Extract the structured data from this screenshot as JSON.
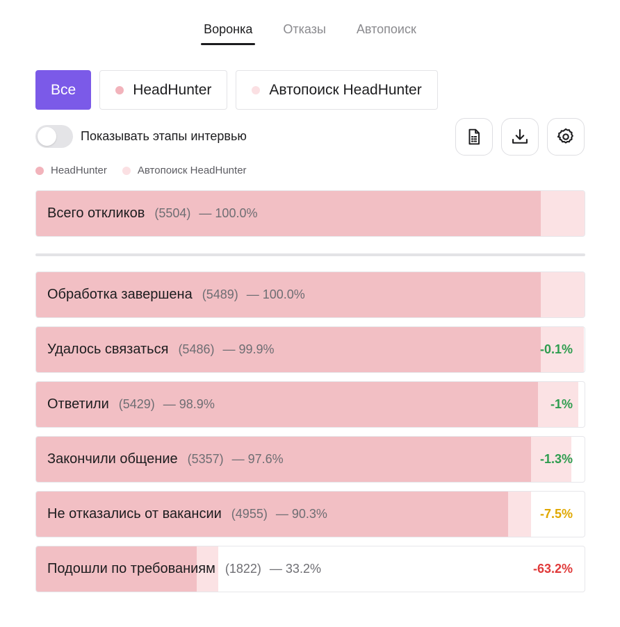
{
  "tabs": [
    {
      "label": "Воронка",
      "active": true
    },
    {
      "label": "Отказы",
      "active": false
    },
    {
      "label": "Автопоиск",
      "active": false
    }
  ],
  "filters": [
    {
      "label": "Все",
      "active": true
    },
    {
      "label": "HeadHunter",
      "dot_color": "#f2b3bb"
    },
    {
      "label": "Автопоиск HeadHunter",
      "dot_color": "#fbe0e3"
    }
  ],
  "toggle": {
    "label": "Показывать этапы интервью",
    "on": false
  },
  "actions": [
    {
      "icon": "spreadsheet-icon"
    },
    {
      "icon": "download-icon"
    },
    {
      "icon": "gear-icon"
    }
  ],
  "legend": [
    {
      "label": "HeadHunter",
      "color": "#f2b3bb"
    },
    {
      "label": "Автопоиск HeadHunter",
      "color": "#fbe0e3"
    }
  ],
  "colors": {
    "accent": "#7b5ae8",
    "bar_main": "#f2bfc4",
    "bar_light": "#fbe2e4",
    "delta_green": "#2e9d4f",
    "delta_yellow": "#e0a800",
    "delta_red": "#e03a3a"
  },
  "total": {
    "label": "Всего откликов",
    "count": "(5504)",
    "pct": "— 100.0%",
    "main_fraction": 0.92,
    "light_fraction": 1.0
  },
  "stages": [
    {
      "label": "Обработка завершена",
      "count": "(5489)",
      "pct": "— 100.0%",
      "delta": "",
      "delta_color": "",
      "main_fraction": 0.92,
      "light_fraction": 1.0
    },
    {
      "label": "Удалось связаться",
      "count": "(5486)",
      "pct": "— 99.9%",
      "delta": "-0.1%",
      "delta_color": "#2e9d4f",
      "main_fraction": 0.92,
      "light_fraction": 0.999
    },
    {
      "label": "Ответили",
      "count": "(5429)",
      "pct": "— 98.9%",
      "delta": "-1%",
      "delta_color": "#2e9d4f",
      "main_fraction": 0.915,
      "light_fraction": 0.989
    },
    {
      "label": "Закончили общение",
      "count": "(5357)",
      "pct": "— 97.6%",
      "delta": "-1.3%",
      "delta_color": "#2e9d4f",
      "main_fraction": 0.902,
      "light_fraction": 0.976
    },
    {
      "label": "Не отказались от вакансии",
      "count": "(4955)",
      "pct": "— 90.3%",
      "delta": "-7.5%",
      "delta_color": "#e0a800",
      "main_fraction": 0.861,
      "light_fraction": 0.903
    },
    {
      "label": "Подошли по требованиям",
      "count": "(1822)",
      "pct": "— 33.2%",
      "delta": "-63.2%",
      "delta_color": "#e03a3a",
      "main_fraction": 0.293,
      "light_fraction": 0.332
    }
  ]
}
